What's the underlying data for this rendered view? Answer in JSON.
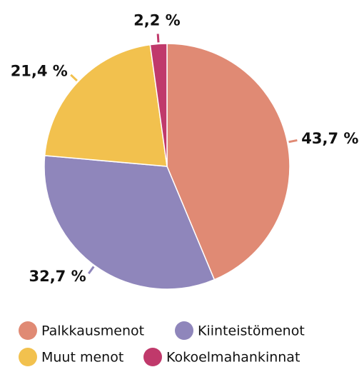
{
  "chart_data": {
    "type": "pie",
    "categories": [
      "Palkkausmenot",
      "Kiinteistömenot",
      "Muut menot",
      "Kokoelmahankinnat"
    ],
    "values": [
      43.7,
      32.7,
      21.4,
      2.2
    ],
    "value_labels": [
      "43,7 %",
      "32,7 %",
      "21,4 %",
      "2,2 %"
    ],
    "colors": [
      "#e08a74",
      "#8f86bb",
      "#f2c14e",
      "#c0396b"
    ]
  }
}
